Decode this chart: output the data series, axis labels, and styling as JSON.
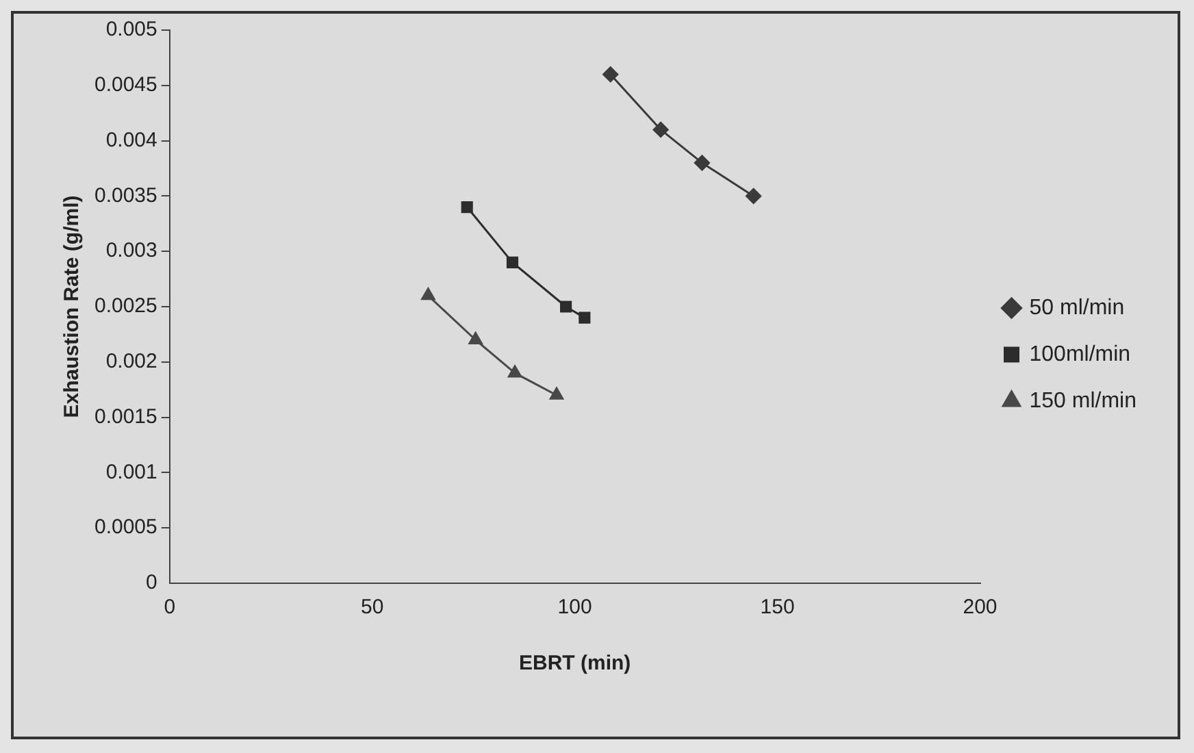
{
  "chart_data": {
    "type": "line",
    "xlabel": "EBRT (min)",
    "ylabel": "Exhaustion Rate (g/ml)",
    "xlim": [
      0,
      200
    ],
    "xticks": [
      0,
      50,
      100,
      150,
      200
    ],
    "ylim": [
      0,
      0.005
    ],
    "yticks": [
      0,
      0.0005,
      0.001,
      0.0015,
      0.002,
      0.0025,
      0.003,
      0.0035,
      0.004,
      0.0045,
      0.005
    ],
    "grid": false,
    "legend": "right",
    "line_style": "solid",
    "series": [
      {
        "name": "50 ml/min",
        "color": "#3a3a3a",
        "marker": "diamond",
        "x": [
          108.8,
          121.2,
          131.4,
          144.1
        ],
        "values": [
          0.0046,
          0.0041,
          0.0038,
          0.0035
        ]
      },
      {
        "name": "100ml/min",
        "color": "#2c2c2c",
        "marker": "square",
        "x": [
          73.4,
          84.6,
          97.8,
          102.4
        ],
        "values": [
          0.0034,
          0.0029,
          0.0025,
          0.0024
        ]
      },
      {
        "name": "150 ml/min",
        "color": "#484848",
        "marker": "triangle",
        "x": [
          63.8,
          75.5,
          85.2,
          95.5
        ],
        "values": [
          0.0026,
          0.0022,
          0.0019,
          0.0017
        ]
      }
    ]
  }
}
